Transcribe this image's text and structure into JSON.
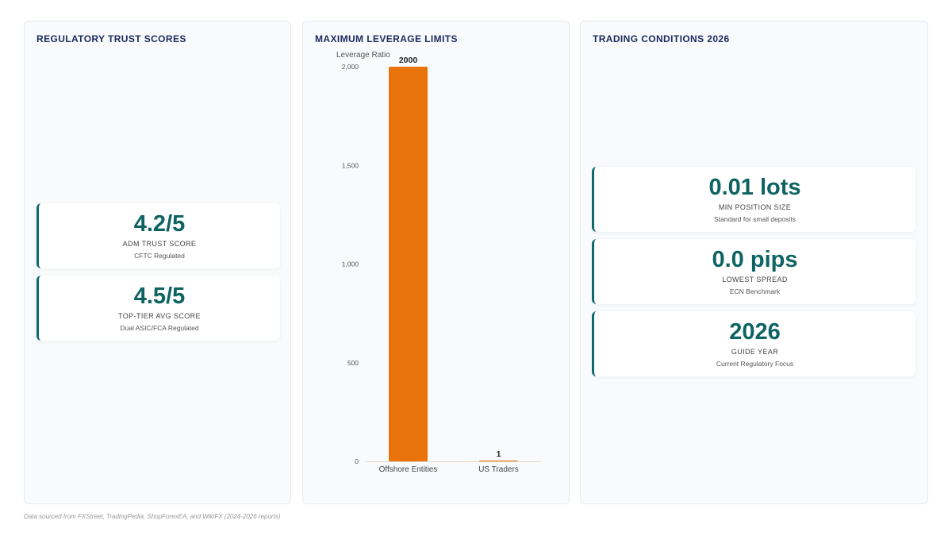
{
  "panels": {
    "left": {
      "title": "REGULATORY TRUST SCORES",
      "cards": [
        {
          "value": "4.2/5",
          "label": "ADM TRUST SCORE",
          "sub": "CFTC Regulated"
        },
        {
          "value": "4.5/5",
          "label": "TOP-TIER AVG SCORE",
          "sub": "Dual ASIC/FCA Regulated"
        }
      ]
    },
    "middle": {
      "title": "MAXIMUM LEVERAGE LIMITS"
    },
    "right": {
      "title": "TRADING CONDITIONS 2026",
      "cards": [
        {
          "value": "0.01 lots",
          "label": "MIN POSITION SIZE",
          "sub": "Standard for small deposits"
        },
        {
          "value": "0.0 pips",
          "label": "LOWEST SPREAD",
          "sub": "ECN Benchmark"
        },
        {
          "value": "2026",
          "label": "GUIDE YEAR",
          "sub": "Current Regulatory Focus"
        }
      ]
    }
  },
  "chart_data": {
    "type": "bar",
    "title": "MAXIMUM LEVERAGE LIMITS",
    "ylabel": "Leverage Ratio",
    "xlabel": "",
    "categories": [
      "Offshore Entities",
      "US Traders"
    ],
    "values": [
      2000,
      1
    ],
    "data_labels": [
      "2000",
      "1"
    ],
    "ylim": [
      0,
      2000
    ],
    "yticks": [
      0,
      500,
      1000,
      1500,
      2000
    ],
    "ytick_labels": [
      "0",
      "500",
      "1,000",
      "1,500",
      "2,000"
    ],
    "bar_color": "#e8730a",
    "grid": false,
    "legend": "none"
  },
  "footer": "Data sourced from FXStreet, TradingPedia, ShopForexEA, and WikiFX (2024-2026 reports)"
}
